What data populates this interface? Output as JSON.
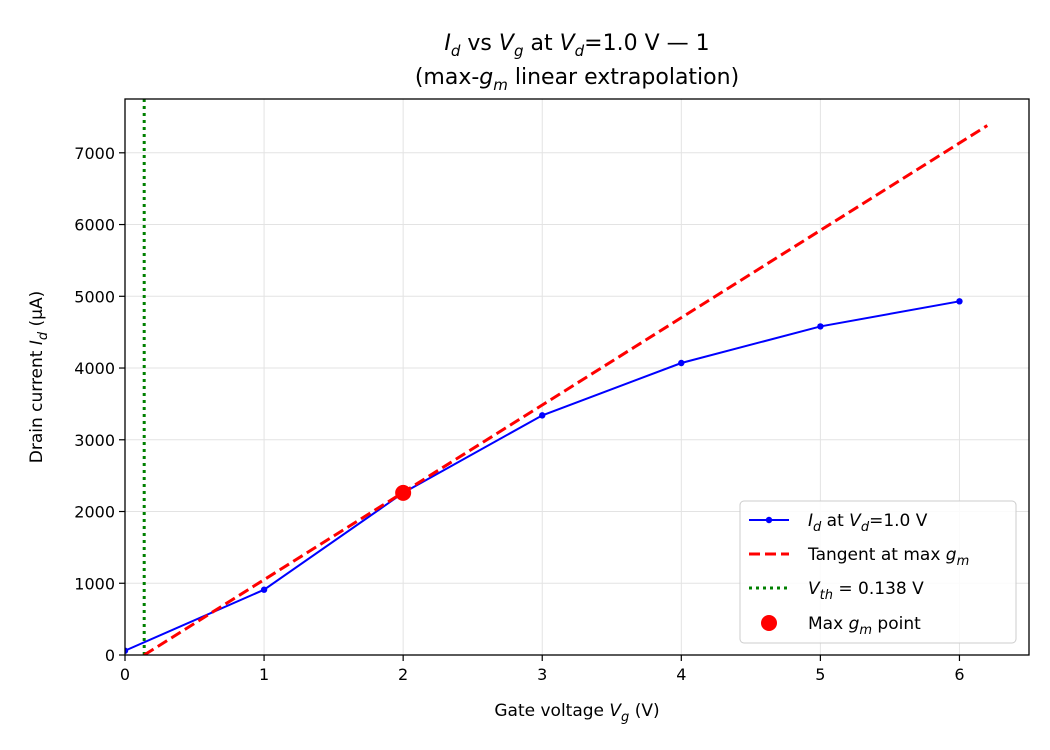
{
  "chart_data": {
    "type": "line",
    "title": {
      "line1": {
        "a": "I",
        "a_sub": "d",
        "b": " vs ",
        "c": "V",
        "c_sub": "g",
        "d": " at ",
        "e": "V",
        "e_sub": "d",
        "f": "=1.0 V — 1"
      },
      "line2": {
        "a": "(max-",
        "b": "g",
        "b_sub": "m",
        "c": " linear extrapolation)"
      }
    },
    "xlabel": {
      "a": "Gate voltage ",
      "b": "V",
      "b_sub": "g",
      "c": " (V)"
    },
    "ylabel": {
      "a": "Drain current ",
      "b": "I",
      "b_sub": "d",
      "c": " (μA)"
    },
    "xlim": [
      0,
      6.5
    ],
    "ylim": [
      0,
      7750
    ],
    "xticks": [
      0,
      1,
      2,
      3,
      4,
      5,
      6
    ],
    "yticks": [
      0,
      1000,
      2000,
      3000,
      4000,
      5000,
      6000,
      7000
    ],
    "grid": true,
    "legend_position": "lower-right",
    "series": [
      {
        "name": "Id at Vd=1.0 V",
        "kind": "line-markers",
        "color": "#0000ff",
        "x": [
          0,
          1,
          2,
          3,
          4,
          5,
          6
        ],
        "y": [
          60,
          910,
          2260,
          3340,
          4070,
          4580,
          4930
        ]
      },
      {
        "name": "Tangent at max gm",
        "kind": "dashed",
        "color": "#ff0000",
        "x": [
          0.138,
          6.2
        ],
        "y": [
          0,
          7380
        ]
      },
      {
        "name": "Vth = 0.138 V",
        "kind": "dotted-vertical",
        "color": "#008000",
        "x": 0.138
      },
      {
        "name": "Max gm point",
        "kind": "point",
        "color": "#ff0000",
        "x": 2,
        "y": 2260
      }
    ],
    "legend": [
      {
        "a": "I",
        "a_sub": "d",
        "b": " at ",
        "c": "V",
        "c_sub": "d",
        "d": "=1.0 V"
      },
      {
        "a": "Tangent at max ",
        "b": "g",
        "b_sub": "m"
      },
      {
        "a": "V",
        "a_sub": "th",
        "b": " = 0.138 V"
      },
      {
        "a": "Max ",
        "b": "g",
        "b_sub": "m",
        "c": " point"
      }
    ]
  }
}
